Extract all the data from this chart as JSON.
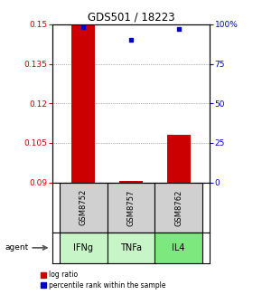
{
  "title": "GDS501 / 18223",
  "samples": [
    "GSM8752",
    "GSM8757",
    "GSM8762"
  ],
  "agents": [
    "IFNg",
    "TNFa",
    "IL4"
  ],
  "log_ratios": [
    0.15,
    0.0905,
    0.108
  ],
  "percentile_ranks_pct": [
    98,
    90,
    97
  ],
  "ylim_left": [
    0.09,
    0.15
  ],
  "ylim_right": [
    0,
    100
  ],
  "yticks_left": [
    0.09,
    0.105,
    0.12,
    0.135,
    0.15
  ],
  "yticks_right": [
    0,
    25,
    50,
    75,
    100
  ],
  "ytick_labels_left": [
    "0.09",
    "0.105",
    "0.12",
    "0.135",
    "0.15"
  ],
  "ytick_labels_right": [
    "0",
    "25",
    "50",
    "75",
    "100%"
  ],
  "bar_color": "#cc0000",
  "dot_color": "#0000cc",
  "agent_colors": [
    "#c8f5c8",
    "#c8f5c8",
    "#7de87d"
  ],
  "sample_box_color": "#d0d0d0",
  "grid_color": "#666666",
  "bar_width": 0.5,
  "legend_labels": [
    "log ratio",
    "percentile rank within the sample"
  ]
}
